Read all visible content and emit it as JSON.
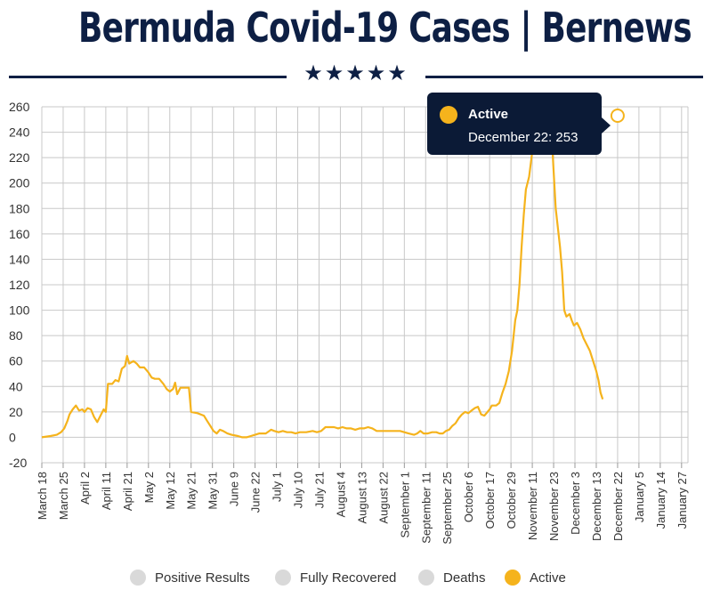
{
  "header": {
    "title": "Bermuda Covid-19 Cases | Bernews",
    "stars": "★★★★★"
  },
  "legend": {
    "items": [
      {
        "label": "Positive Results",
        "color": "#d9d9d9",
        "active": false
      },
      {
        "label": "Fully Recovered",
        "color": "#d9d9d9",
        "active": false
      },
      {
        "label": "Deaths",
        "color": "#d9d9d9",
        "active": false
      },
      {
        "label": "Active",
        "color": "#f5b31c",
        "active": true
      }
    ]
  },
  "tooltip": {
    "series": "Active",
    "text": "December 22: 253"
  },
  "colors": {
    "active": "#f5b31c",
    "navy": "#0d1f44",
    "grid": "#c8c8c8"
  },
  "chart_data": {
    "type": "line",
    "ylim": [
      -20,
      260
    ],
    "yticks": [
      -20,
      0,
      20,
      40,
      60,
      80,
      100,
      120,
      140,
      160,
      180,
      200,
      220,
      240,
      260
    ],
    "grid": true,
    "legend_position": "bottom",
    "xtick_labels": [
      "March 18",
      "March 25",
      "April 2",
      "April 11",
      "April 21",
      "May 2",
      "May 12",
      "May 21",
      "May 31",
      "June 9",
      "June 22",
      "July 1",
      "July 10",
      "July 21",
      "August 4",
      "August 13",
      "August 22",
      "September 1",
      "September 11",
      "September 25",
      "October 6",
      "October 17",
      "October 29",
      "November 11",
      "November 23",
      "December 3",
      "December 13",
      "December 22",
      "January 5",
      "January 14",
      "January 27"
    ],
    "highlight": {
      "x": "December 22",
      "y": 253
    },
    "series": [
      {
        "name": "Active",
        "color": "#f5b31c",
        "points": [
          [
            0,
            0
          ],
          [
            0.4,
            1
          ],
          [
            0.7,
            2
          ],
          [
            0.9,
            4
          ],
          [
            1.05,
            7
          ],
          [
            1.2,
            13
          ],
          [
            1.3,
            18
          ],
          [
            1.45,
            22
          ],
          [
            1.6,
            25
          ],
          [
            1.75,
            21
          ],
          [
            1.9,
            22
          ],
          [
            2.0,
            20
          ],
          [
            2.15,
            23
          ],
          [
            2.3,
            22
          ],
          [
            2.45,
            16
          ],
          [
            2.6,
            12
          ],
          [
            2.75,
            17
          ],
          [
            2.9,
            22
          ],
          [
            3.0,
            20
          ],
          [
            3.1,
            42
          ],
          [
            3.3,
            42
          ],
          [
            3.45,
            45
          ],
          [
            3.6,
            44
          ],
          [
            3.75,
            54
          ],
          [
            3.9,
            56
          ],
          [
            4.0,
            64
          ],
          [
            4.1,
            58
          ],
          [
            4.3,
            60
          ],
          [
            4.45,
            58
          ],
          [
            4.6,
            55
          ],
          [
            4.8,
            55
          ],
          [
            5.0,
            51
          ],
          [
            5.15,
            47
          ],
          [
            5.3,
            46
          ],
          [
            5.5,
            46
          ],
          [
            5.7,
            42
          ],
          [
            5.85,
            38
          ],
          [
            6.0,
            36
          ],
          [
            6.15,
            38
          ],
          [
            6.25,
            43
          ],
          [
            6.35,
            34
          ],
          [
            6.5,
            39
          ],
          [
            6.7,
            39
          ],
          [
            6.9,
            39
          ],
          [
            7.0,
            20
          ],
          [
            7.3,
            19
          ],
          [
            7.6,
            17
          ],
          [
            7.75,
            13
          ],
          [
            7.9,
            9
          ],
          [
            8.05,
            5
          ],
          [
            8.2,
            3
          ],
          [
            8.35,
            6
          ],
          [
            8.5,
            5
          ],
          [
            8.7,
            3
          ],
          [
            8.9,
            2
          ],
          [
            9.2,
            1
          ],
          [
            9.4,
            0
          ],
          [
            9.6,
            0
          ],
          [
            9.8,
            1
          ],
          [
            10.0,
            2
          ],
          [
            10.2,
            3
          ],
          [
            10.5,
            3
          ],
          [
            10.75,
            6
          ],
          [
            10.9,
            5
          ],
          [
            11.1,
            4
          ],
          [
            11.3,
            5
          ],
          [
            11.5,
            4
          ],
          [
            11.7,
            4
          ],
          [
            11.9,
            3
          ],
          [
            12.1,
            4
          ],
          [
            12.4,
            4
          ],
          [
            12.7,
            5
          ],
          [
            12.9,
            4
          ],
          [
            13.1,
            5
          ],
          [
            13.3,
            8
          ],
          [
            13.5,
            8
          ],
          [
            13.7,
            8
          ],
          [
            13.9,
            7
          ],
          [
            14.1,
            8
          ],
          [
            14.3,
            7
          ],
          [
            14.5,
            7
          ],
          [
            14.7,
            6
          ],
          [
            14.9,
            7
          ],
          [
            15.1,
            7
          ],
          [
            15.3,
            8
          ],
          [
            15.5,
            7
          ],
          [
            15.7,
            5
          ],
          [
            16.0,
            5
          ],
          [
            16.4,
            5
          ],
          [
            16.8,
            5
          ],
          [
            17.0,
            4
          ],
          [
            17.2,
            3
          ],
          [
            17.45,
            2
          ],
          [
            17.6,
            3
          ],
          [
            17.75,
            5
          ],
          [
            17.9,
            3
          ],
          [
            18.1,
            3
          ],
          [
            18.3,
            4
          ],
          [
            18.5,
            4
          ],
          [
            18.65,
            3
          ],
          [
            18.8,
            3
          ],
          [
            18.95,
            5
          ],
          [
            19.1,
            6
          ],
          [
            19.25,
            9
          ],
          [
            19.4,
            11
          ],
          [
            19.55,
            15
          ],
          [
            19.7,
            18
          ],
          [
            19.85,
            20
          ],
          [
            20.0,
            19
          ],
          [
            20.15,
            21
          ],
          [
            20.3,
            23
          ],
          [
            20.45,
            24
          ],
          [
            20.6,
            18
          ],
          [
            20.75,
            17
          ],
          [
            20.9,
            20
          ],
          [
            21.0,
            22
          ],
          [
            21.1,
            25
          ],
          [
            21.3,
            25
          ],
          [
            21.45,
            27
          ],
          [
            21.6,
            35
          ],
          [
            21.75,
            42
          ],
          [
            21.9,
            52
          ],
          [
            22.05,
            68
          ],
          [
            22.2,
            92
          ],
          [
            22.3,
            100
          ],
          [
            22.4,
            120
          ],
          [
            22.5,
            150
          ],
          [
            22.6,
            175
          ],
          [
            22.7,
            195
          ],
          [
            22.85,
            205
          ],
          [
            23.0,
            225
          ],
          [
            23.15,
            240
          ],
          [
            23.3,
            245
          ],
          [
            23.45,
            250
          ],
          [
            23.6,
            247
          ],
          [
            23.75,
            253
          ],
          [
            23.9,
            240
          ],
          [
            24.0,
            210
          ],
          [
            24.1,
            180
          ],
          [
            24.2,
            165
          ],
          [
            24.3,
            150
          ],
          [
            24.4,
            130
          ],
          [
            24.5,
            100
          ],
          [
            24.6,
            95
          ],
          [
            24.75,
            97
          ],
          [
            24.85,
            92
          ],
          [
            24.95,
            88
          ],
          [
            25.1,
            90
          ],
          [
            25.25,
            85
          ],
          [
            25.4,
            78
          ],
          [
            25.55,
            73
          ],
          [
            25.7,
            68
          ],
          [
            25.85,
            60
          ],
          [
            26.0,
            52
          ],
          [
            26.1,
            45
          ],
          [
            26.2,
            35
          ],
          [
            26.3,
            30
          ]
        ]
      }
    ]
  }
}
